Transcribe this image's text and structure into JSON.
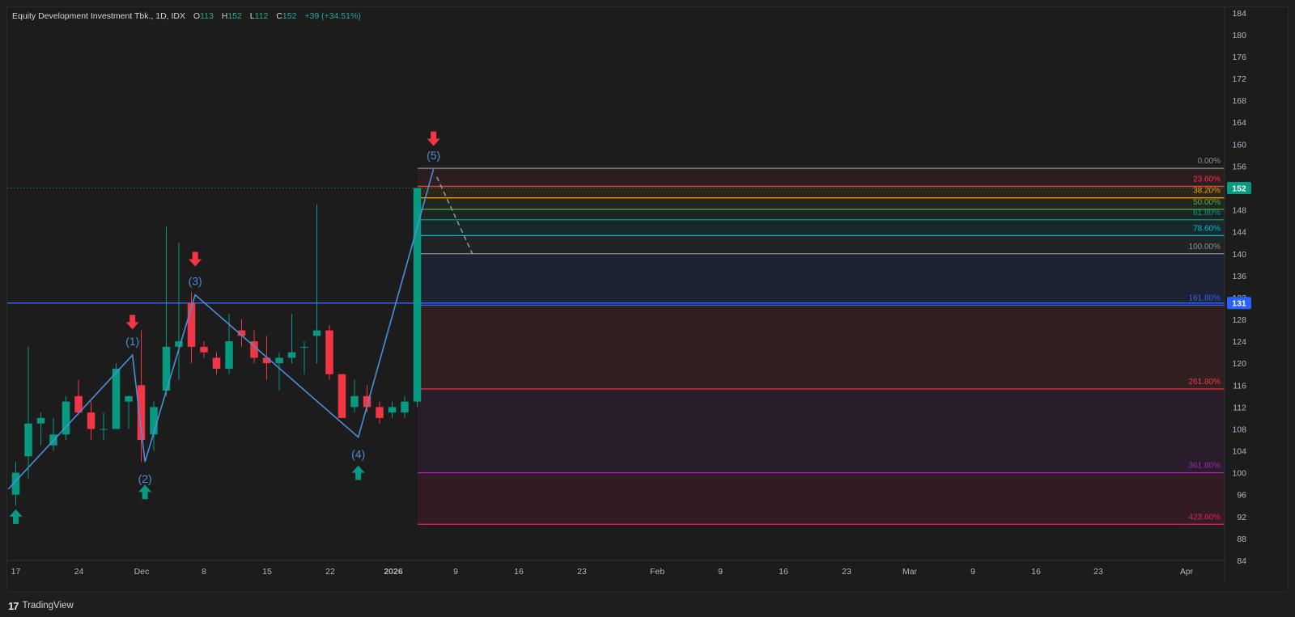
{
  "header": {
    "symbol": "Equity Development Investment Tbk., 1D, IDX",
    "open_label": "O",
    "open": "113",
    "high_label": "H",
    "high": "152",
    "low_label": "L",
    "low": "112",
    "close_label": "C",
    "close": "152",
    "change": "+39 (+34.51%)"
  },
  "footer": {
    "brand": "TradingView",
    "logo": "17"
  },
  "colors": {
    "up": "#089981",
    "down": "#f23645",
    "wave": "#4a8fd9",
    "hline": "#2962ff"
  },
  "chart_data": {
    "type": "candlestick",
    "y_axis": {
      "ticks": [
        84,
        88,
        92,
        96,
        100,
        104,
        108,
        112,
        116,
        120,
        124,
        128,
        132,
        136,
        140,
        144,
        148,
        152,
        156,
        160,
        164,
        168,
        172,
        176,
        180,
        184
      ],
      "ylim": [
        84,
        185
      ]
    },
    "x_axis": {
      "tick_labels": [
        "17",
        "24",
        "Dec",
        "8",
        "15",
        "22",
        "2026",
        "9",
        "16",
        "23",
        "Feb",
        "9",
        "16",
        "23",
        "Mar",
        "9",
        "16",
        "23",
        "Apr"
      ]
    },
    "candles": [
      {
        "o": 96,
        "h": 102,
        "l": 94,
        "c": 100
      },
      {
        "o": 103,
        "h": 123,
        "l": 99,
        "c": 109
      },
      {
        "o": 109,
        "h": 111,
        "l": 105,
        "c": 110
      },
      {
        "o": 105,
        "h": 110,
        "l": 104,
        "c": 107
      },
      {
        "o": 107,
        "h": 114,
        "l": 106,
        "c": 113
      },
      {
        "o": 114,
        "h": 117,
        "l": 111,
        "c": 111
      },
      {
        "o": 111,
        "h": 113,
        "l": 106,
        "c": 108
      },
      {
        "o": 108,
        "h": 111,
        "l": 106,
        "c": 108
      },
      {
        "o": 108,
        "h": 120,
        "l": 108,
        "c": 119
      },
      {
        "o": 113,
        "h": 114,
        "l": 108,
        "c": 114
      },
      {
        "o": 116,
        "h": 126,
        "l": 102,
        "c": 106
      },
      {
        "o": 107,
        "h": 113,
        "l": 104,
        "c": 112
      },
      {
        "o": 115,
        "h": 145,
        "l": 114,
        "c": 123
      },
      {
        "o": 123,
        "h": 142,
        "l": 117,
        "c": 124
      },
      {
        "o": 131,
        "h": 133,
        "l": 120,
        "c": 123
      },
      {
        "o": 123,
        "h": 124,
        "l": 121,
        "c": 122
      },
      {
        "o": 121,
        "h": 122,
        "l": 118,
        "c": 119
      },
      {
        "o": 119,
        "h": 129,
        "l": 118,
        "c": 124
      },
      {
        "o": 126,
        "h": 128,
        "l": 123,
        "c": 125
      },
      {
        "o": 124,
        "h": 126,
        "l": 120,
        "c": 121
      },
      {
        "o": 121,
        "h": 125,
        "l": 117,
        "c": 120
      },
      {
        "o": 120,
        "h": 122,
        "l": 115,
        "c": 121
      },
      {
        "o": 121,
        "h": 129,
        "l": 120,
        "c": 122
      },
      {
        "o": 123,
        "h": 124,
        "l": 118,
        "c": 123
      },
      {
        "o": 125,
        "h": 149,
        "l": 120,
        "c": 126
      },
      {
        "o": 126,
        "h": 127,
        "l": 117,
        "c": 118
      },
      {
        "o": 118,
        "h": 118,
        "l": 110,
        "c": 110
      },
      {
        "o": 112,
        "h": 117,
        "l": 111,
        "c": 114
      },
      {
        "o": 114,
        "h": 116,
        "l": 111,
        "c": 112
      },
      {
        "o": 112,
        "h": 113,
        "l": 109,
        "c": 110
      },
      {
        "o": 111,
        "h": 113,
        "l": 110,
        "c": 112
      },
      {
        "o": 111,
        "h": 114,
        "l": 110,
        "c": 113
      },
      {
        "o": 113,
        "h": 152,
        "l": 112,
        "c": 152
      }
    ],
    "wave": {
      "points": [
        {
          "label": "",
          "i": -0.6,
          "y": 97
        },
        {
          "label": "(1)",
          "i": 9.3,
          "y": 121.5
        },
        {
          "label": "(2)",
          "i": 10.3,
          "y": 102
        },
        {
          "label": "(3)",
          "i": 14.3,
          "y": 132.5
        },
        {
          "label": "(4)",
          "i": 27.3,
          "y": 106.5
        },
        {
          "label": "(5)",
          "i": 33.3,
          "y": 155.5
        }
      ]
    },
    "buy_arrows": [
      {
        "i": 0,
        "y": 92
      },
      {
        "i": 10.3,
        "y": 96.5
      },
      {
        "i": 27.3,
        "y": 100
      }
    ],
    "sell_arrows": [
      {
        "i": 9.3,
        "y": 127.5
      },
      {
        "i": 14.3,
        "y": 139
      },
      {
        "i": 33.3,
        "y": 161
      }
    ],
    "price_line": {
      "value": 152,
      "label": "152"
    },
    "horizontal_line": {
      "value": 131,
      "label": "131"
    },
    "fibonacci": [
      {
        "label": "0.00%",
        "value": 155.6,
        "color": "#8a8d96",
        "fill": null
      },
      {
        "label": "23.60%",
        "value": 152.3,
        "color": "#f23645",
        "fill": "rgba(242,54,69,0.08)"
      },
      {
        "label": "38.20%",
        "value": 150.2,
        "color": "#ff9800",
        "fill": "rgba(255,152,0,0.08)"
      },
      {
        "label": "50.00%",
        "value": 148.1,
        "color": "#4caf50",
        "fill": "rgba(76,175,80,0.08)"
      },
      {
        "label": "61.80%",
        "value": 146.2,
        "color": "#089981",
        "fill": "rgba(8,153,129,0.08)"
      },
      {
        "label": "78.60%",
        "value": 143.3,
        "color": "#00bcd4",
        "fill": "rgba(0,188,212,0.08)"
      },
      {
        "label": "100.00%",
        "value": 140.0,
        "color": "#8a8d96",
        "fill": "rgba(120,123,134,0.08)"
      },
      {
        "label": "161.80%",
        "value": 130.6,
        "color": "#2962ff",
        "fill": "rgba(41,98,255,0.10)"
      },
      {
        "label": "261.80%",
        "value": 115.3,
        "color": "#f23645",
        "fill": "rgba(242,54,69,0.10)"
      },
      {
        "label": "361.80%",
        "value": 100.0,
        "color": "#9c27b0",
        "fill": "rgba(156,39,176,0.10)"
      },
      {
        "label": "423.60%",
        "value": 90.6,
        "color": "#e91e63",
        "fill": "rgba(233,30,99,0.10)"
      }
    ]
  }
}
